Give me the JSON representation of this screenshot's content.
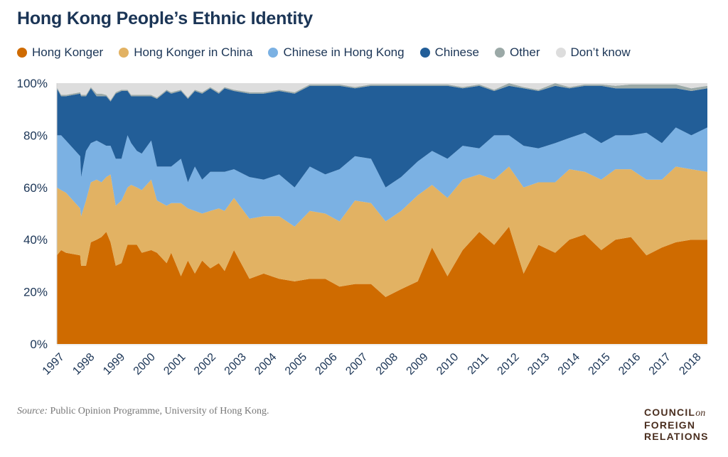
{
  "title": "Hong Kong People’s Ethnic Identity",
  "source_label": "Source:",
  "source_text": " Public Opinion Programme, University of Hong Kong.",
  "logo": {
    "line1": "COUNCIL",
    "on": "on",
    "line2": "FOREIGN",
    "line3": "RELATIONS"
  },
  "chart_data": {
    "type": "area",
    "stacked": true,
    "title": "Hong Kong People’s Ethnic Identity",
    "xlabel": "",
    "ylabel": "",
    "ylim": [
      0,
      100
    ],
    "xlim": [
      1997,
      2018.45
    ],
    "y_ticks": [
      "0%",
      "20%",
      "40%",
      "60%",
      "80%",
      "100%"
    ],
    "x_ticks": [
      "1997",
      "1998",
      "1999",
      "2000",
      "2001",
      "2002",
      "2003",
      "2004",
      "2005",
      "2006",
      "2007",
      "2008",
      "2009",
      "2010",
      "2011",
      "2012",
      "2013",
      "2014",
      "2015",
      "2016",
      "2017",
      "2018"
    ],
    "grid": false,
    "legend": "top",
    "x": [
      1997.0,
      1997.14,
      1997.3,
      1997.77,
      1997.8,
      1997.96,
      1998.12,
      1998.31,
      1998.47,
      1998.63,
      1998.77,
      1998.94,
      1999.13,
      1999.33,
      1999.45,
      1999.64,
      1999.8,
      2000.11,
      2000.3,
      2000.62,
      2000.77,
      2001.09,
      2001.32,
      2001.55,
      2001.79,
      2002.06,
      2002.34,
      2002.53,
      2002.84,
      2003.35,
      2003.82,
      2004.33,
      2004.84,
      2005.34,
      2005.85,
      2006.32,
      2006.83,
      2007.36,
      2007.84,
      2008.35,
      2008.9,
      2009.37,
      2009.88,
      2010.38,
      2010.93,
      2011.42,
      2011.91,
      2012.39,
      2012.88,
      2013.43,
      2013.9,
      2014.41,
      2014.95,
      2015.42,
      2015.93,
      2016.44,
      2016.95,
      2017.41,
      2017.92,
      2018.41
    ],
    "series": [
      {
        "name": "Hong Konger",
        "color": "#cf6b00",
        "values": [
          34,
          36,
          35,
          34,
          30,
          30,
          39,
          40,
          41,
          43,
          39,
          30,
          31,
          38,
          38,
          38,
          35,
          36,
          35,
          31,
          35,
          26,
          32,
          27,
          32,
          29,
          31,
          28,
          36,
          25,
          27,
          25,
          24,
          25,
          25,
          22,
          23,
          23,
          18,
          21,
          24,
          37,
          26,
          36,
          43,
          38,
          45,
          27,
          38,
          35,
          40,
          42,
          36,
          40,
          41,
          34,
          37,
          39,
          40,
          40
        ]
      },
      {
        "name": "Hong Konger in China",
        "color": "#e2b263",
        "values": [
          26,
          23,
          23,
          18,
          19,
          25,
          23,
          23,
          21,
          21,
          26,
          23,
          24,
          22,
          23,
          22,
          24,
          27,
          20,
          22,
          19,
          28,
          20,
          24,
          18,
          22,
          21,
          23,
          20,
          23,
          22,
          24,
          21,
          26,
          25,
          25,
          32,
          31,
          29,
          30,
          33,
          24,
          30,
          27,
          22,
          25,
          23,
          33,
          24,
          27,
          27,
          24,
          27,
          27,
          26,
          29,
          26,
          29,
          27,
          26
        ]
      },
      {
        "name": "Chinese in Hong Kong",
        "color": "#7bb1e3",
        "values": [
          20,
          21,
          20,
          20,
          15,
          19,
          15,
          15,
          15,
          12,
          11,
          18,
          16,
          20,
          16,
          14,
          14,
          15,
          13,
          15,
          14,
          17,
          10,
          17,
          13,
          15,
          14,
          15,
          11,
          16,
          14,
          16,
          15,
          17,
          15,
          20,
          17,
          17,
          13,
          13,
          13,
          13,
          15,
          13,
          10,
          17,
          12,
          16,
          13,
          15,
          12,
          15,
          14,
          13,
          13,
          18,
          14,
          15,
          13,
          17
        ]
      },
      {
        "name": "Chinese",
        "color": "#225e98",
        "values": [
          18,
          15,
          17,
          24,
          31,
          21,
          21,
          17,
          18,
          19,
          17,
          25,
          26,
          17,
          18,
          21,
          22,
          17,
          26,
          29,
          28,
          26,
          32,
          29,
          33,
          32,
          30,
          32,
          30,
          32,
          33,
          32,
          36,
          31,
          34,
          32,
          26,
          28,
          39,
          35,
          29,
          25,
          28,
          22,
          24,
          17,
          19,
          22,
          22,
          22,
          19,
          18,
          22,
          18,
          18,
          17,
          21,
          15,
          17,
          15
        ]
      },
      {
        "name": "Other",
        "color": "#9ba9a7",
        "values": [
          0.5,
          0.5,
          0.5,
          0.5,
          0.5,
          0.5,
          0.5,
          1,
          1,
          0.5,
          0.5,
          0.5,
          0.5,
          0.5,
          0.5,
          0.5,
          0.5,
          0.5,
          0.5,
          0.5,
          0.5,
          0.5,
          0.5,
          0.5,
          0.5,
          0.5,
          0.5,
          0.5,
          0.5,
          0.5,
          0.5,
          0.5,
          0.5,
          0.5,
          0.5,
          0.5,
          0.5,
          0.5,
          0.5,
          0.5,
          0.5,
          0.5,
          0.5,
          0.5,
          0.5,
          0.5,
          1,
          0.5,
          0.5,
          1,
          0.5,
          0.5,
          0.5,
          1,
          1.5,
          1.5,
          1.5,
          1.5,
          1,
          1
        ]
      },
      {
        "name": "Don’t know",
        "color": "#dddddd",
        "values": [
          1.5,
          4.5,
          4.5,
          3.5,
          4.5,
          4.5,
          1.5,
          4,
          4,
          4.5,
          6.5,
          3.5,
          2.5,
          2.5,
          4.5,
          4.5,
          4.5,
          4.5,
          5.5,
          2.5,
          3.5,
          2.5,
          5.5,
          2.5,
          3.5,
          1.5,
          3.5,
          1.5,
          2.5,
          3.5,
          3.5,
          2.5,
          3.5,
          0.5,
          0.5,
          0.5,
          1.5,
          0.5,
          0.5,
          0.5,
          0.5,
          0.5,
          0.5,
          1.5,
          0.5,
          2.5,
          0,
          1.5,
          2.5,
          0,
          1.5,
          0.5,
          0.5,
          1,
          0.5,
          0.5,
          0.5,
          0.5,
          2,
          1
        ]
      }
    ]
  }
}
